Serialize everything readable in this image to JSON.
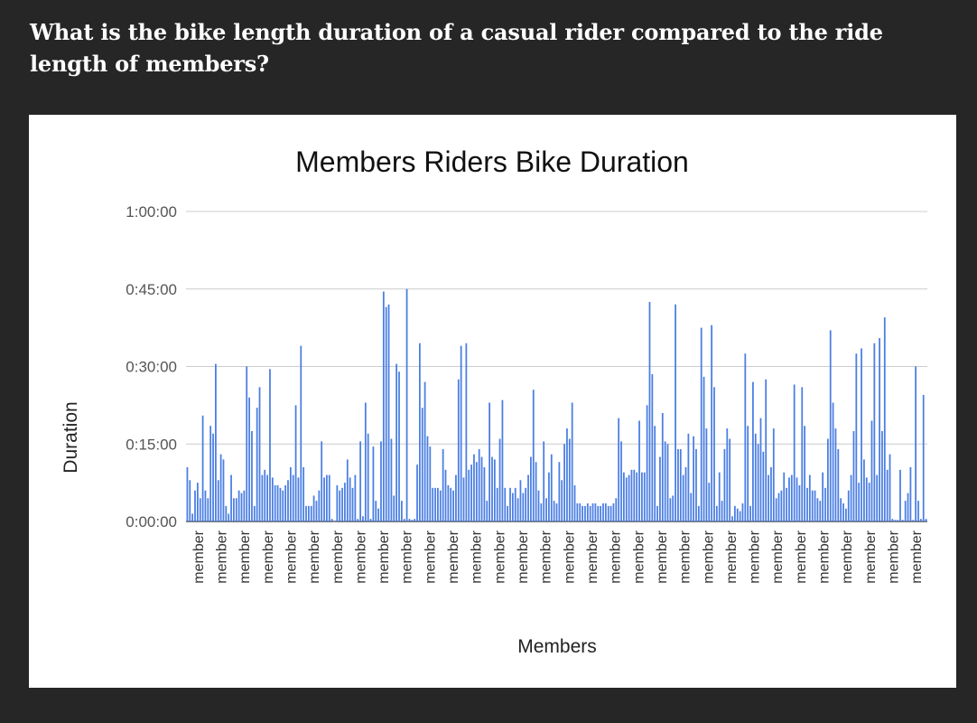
{
  "question": "What is the bike length duration of a casual rider compared to the ride length of members?",
  "chart_data": {
    "type": "bar",
    "title": "Members Riders Bike Duration",
    "xlabel": "Members",
    "ylabel": "Duration",
    "yticks": [
      "0:00:00",
      "0:15:00",
      "0:30:00",
      "0:45:00",
      "1:00:00"
    ],
    "ylim": [
      0,
      60
    ],
    "grid": true,
    "category_label": "member",
    "color": "#4a7ee3",
    "values": [
      10.5,
      8,
      1.5,
      6,
      7.5,
      4.5,
      20.5,
      6,
      4.5,
      18.5,
      17,
      30.5,
      8,
      13,
      12,
      3,
      1.5,
      9,
      4.5,
      4.5,
      6,
      5.5,
      6,
      30,
      24,
      17.5,
      3,
      22,
      26,
      9,
      10,
      9,
      29.5,
      8.5,
      7,
      7,
      6.5,
      6,
      7,
      8,
      10.5,
      9,
      22.5,
      8.5,
      34,
      10.5,
      3,
      3,
      3,
      5,
      4,
      6,
      15.5,
      8.5,
      9,
      9,
      0.5,
      0,
      7,
      6,
      6.5,
      7.5,
      12,
      8.5,
      6.5,
      9,
      0.5,
      15.5,
      1,
      23,
      17,
      0.5,
      14.5,
      4,
      2.5,
      15.5,
      44.5,
      41.5,
      42,
      16,
      5,
      30.5,
      29,
      4,
      0.5,
      45,
      0.5,
      0.3,
      0.5,
      11,
      34.5,
      22,
      27,
      16.5,
      14.5,
      6.5,
      6.5,
      6.5,
      6,
      14,
      10,
      7,
      6.5,
      6,
      9,
      27.5,
      34,
      8.5,
      34.5,
      10,
      11,
      13,
      11.5,
      14,
      12.5,
      10.5,
      4,
      23,
      12.5,
      12,
      6.5,
      16,
      23.5,
      6.5,
      3,
      6.5,
      5.5,
      6.5,
      4.5,
      8,
      5.5,
      6.5,
      9,
      12.5,
      25.5,
      11.5,
      6,
      3.5,
      15.5,
      4.5,
      9.5,
      13,
      4,
      3.5,
      11.5,
      8,
      15,
      18,
      16,
      23,
      7,
      3.5,
      3.5,
      3,
      3,
      3.5,
      3,
      3.5,
      3.5,
      3,
      3,
      3.5,
      3.5,
      3,
      3,
      3.5,
      4.5,
      20,
      15.5,
      9.5,
      8.5,
      9,
      10,
      10,
      9.5,
      19.5,
      9.5,
      9.5,
      22.5,
      42.5,
      28.5,
      18.5,
      3,
      12.5,
      21,
      15.5,
      15,
      4.5,
      5,
      42,
      14,
      14,
      9,
      10.5,
      17,
      5.5,
      16.5,
      14,
      3,
      37.5,
      28,
      18,
      7.5,
      38,
      26,
      3,
      9.5,
      4,
      14,
      18,
      16,
      1,
      3,
      2.5,
      2,
      3.5,
      32.5,
      18.5,
      3,
      27,
      17,
      15,
      20,
      13.5,
      27.5,
      9,
      10.5,
      18,
      4.5,
      5.5,
      6,
      9.5,
      6.5,
      8.5,
      9,
      26.5,
      8.5,
      7,
      26,
      18.5,
      6.5,
      9,
      6,
      6,
      4.5,
      4,
      9.5,
      6.5,
      16,
      37,
      23,
      18,
      14,
      4.5,
      3.5,
      2.5,
      6,
      9,
      17.5,
      32.5,
      7.5,
      33.5,
      12,
      8.5,
      7.5,
      19.5,
      34.5,
      9,
      35.5,
      17.5,
      39.5,
      10,
      13,
      0.5,
      0.3,
      0.3,
      10,
      0.3,
      4,
      5.5,
      10.5,
      0.3,
      30,
      4,
      0.5,
      24.5,
      0.5
    ]
  }
}
